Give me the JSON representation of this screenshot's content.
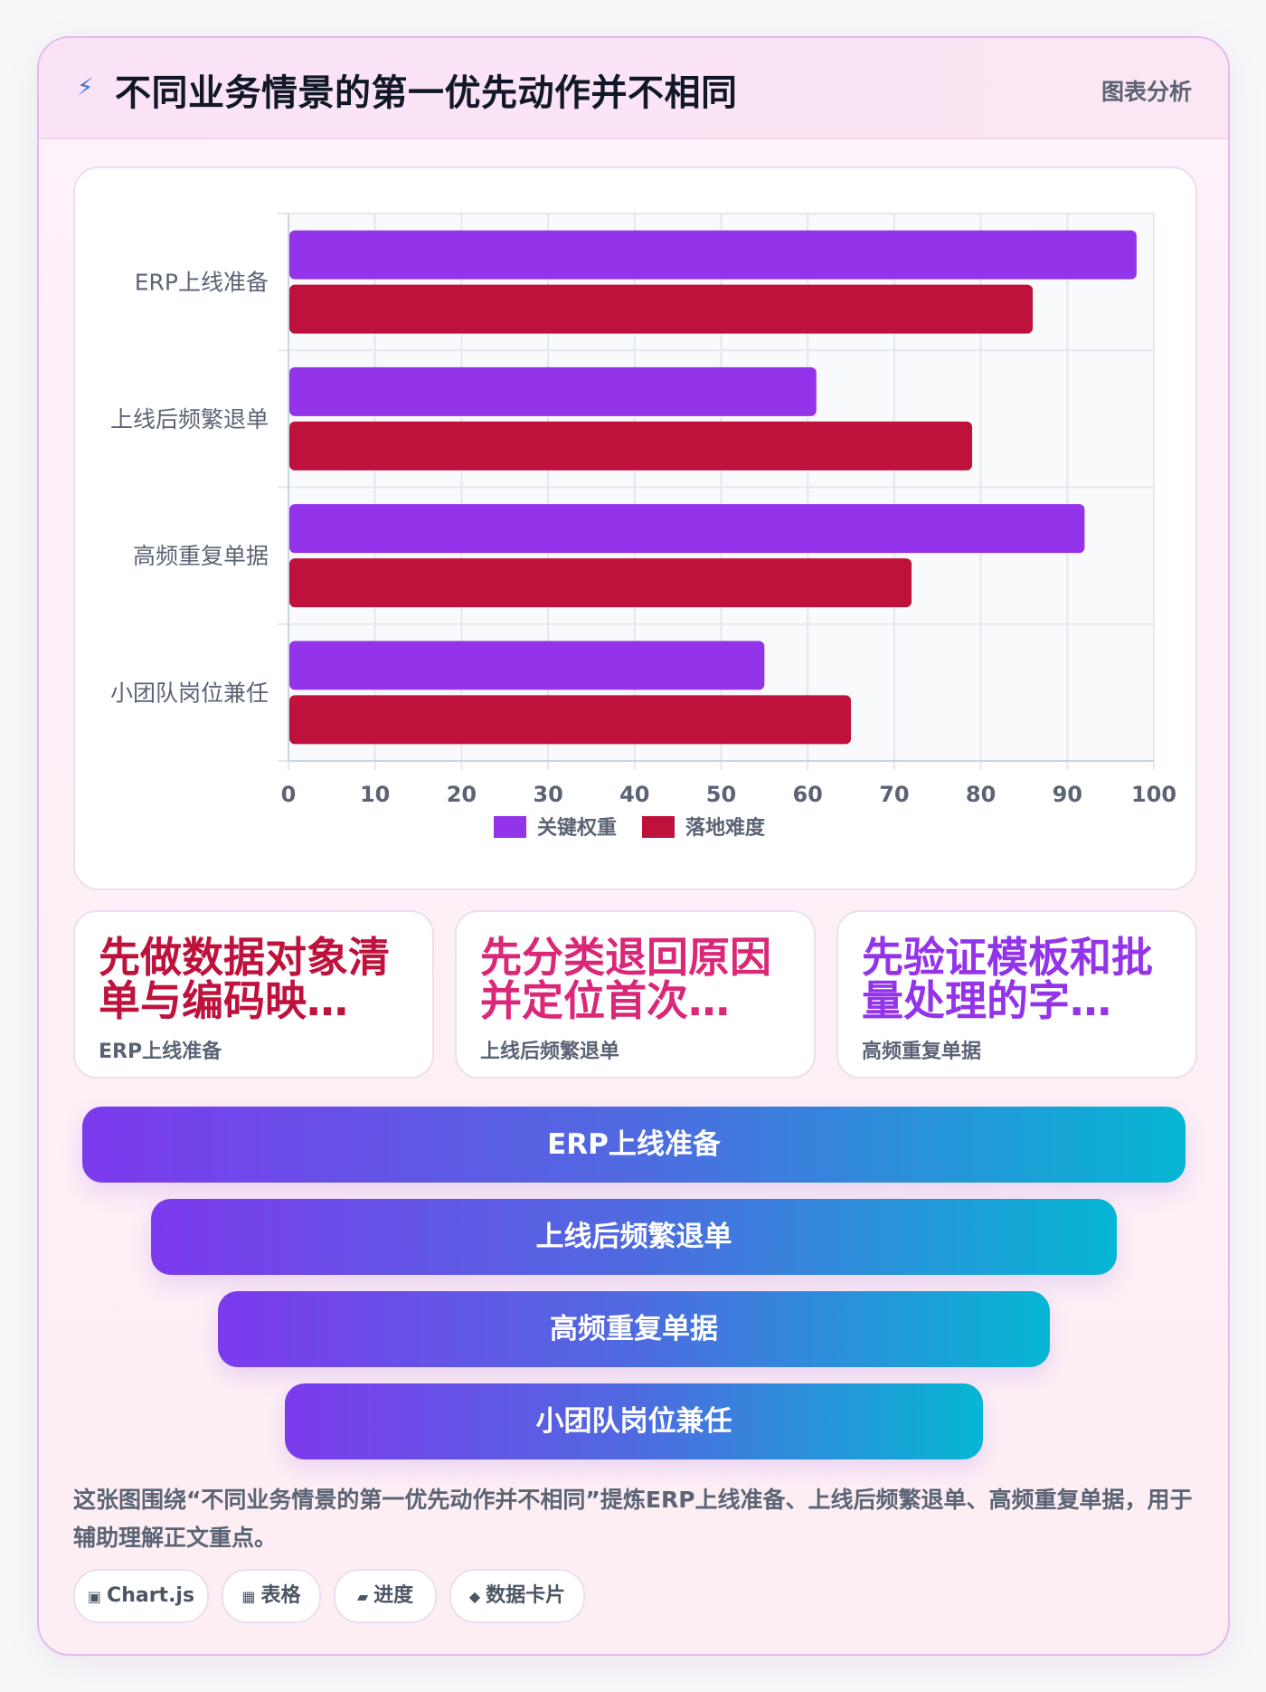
{
  "header": {
    "icon": "lightning-icon",
    "title": "不同业务情景的第一优先动作并不相同",
    "tag": "图表分析"
  },
  "chart_data": {
    "type": "bar",
    "orientation": "horizontal",
    "categories": [
      "ERP上线准备",
      "上线后频繁退单",
      "高频重复单据",
      "小团队岗位兼任"
    ],
    "series": [
      {
        "name": "关键权重",
        "values": [
          98,
          61,
          92,
          55
        ],
        "color": "#9333ea"
      },
      {
        "name": "落地难度",
        "values": [
          86,
          79,
          72,
          65
        ],
        "color": "#be123c"
      }
    ],
    "xlim": [
      0,
      100
    ],
    "xticks": [
      0,
      10,
      20,
      30,
      40,
      50,
      60,
      70,
      80,
      90,
      100
    ],
    "grid": true,
    "legend": "bottom"
  },
  "insights": [
    {
      "text": "先做数据对象清单与编码映…",
      "sub": "ERP上线准备",
      "color": "#be123c"
    },
    {
      "text": "先分类退回原因并定位首次…",
      "sub": "上线后频繁退单",
      "color": "#db2777"
    },
    {
      "text": "先验证模板和批量处理的字…",
      "sub": "高频重复单据",
      "color": "#9333ea"
    }
  ],
  "funnel": [
    {
      "label": "ERP上线准备"
    },
    {
      "label": "上线后频繁退单"
    },
    {
      "label": "高频重复单据"
    },
    {
      "label": "小团队岗位兼任"
    }
  ],
  "caption": "这张图围绕“不同业务情景的第一优先动作并不相同”提炼ERP上线准备、上线后频繁退单、高频重复单据，用于辅助理解正文重点。",
  "tags": [
    {
      "glyph": "▣",
      "label": "Chart.js"
    },
    {
      "glyph": "▦",
      "label": "表格"
    },
    {
      "glyph": "▰",
      "label": "进度"
    },
    {
      "glyph": "◆",
      "label": "数据卡片"
    }
  ]
}
